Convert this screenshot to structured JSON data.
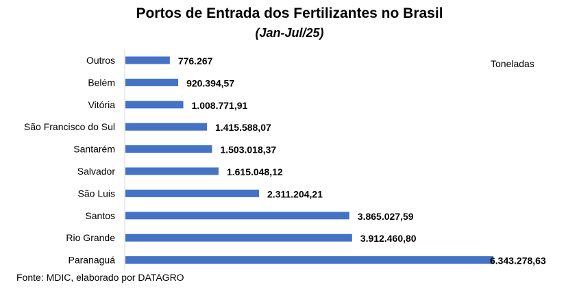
{
  "chart_data": {
    "type": "bar",
    "orientation": "horizontal",
    "title": "Portos de Entrada dos Fertilizantes no Brasil",
    "subtitle": "(Jan-Jul/25)",
    "unit_label": "Toneladas",
    "source": "Fonte: MDIC, elaborado por DATAGRO",
    "categories": [
      "Outros",
      "Belém",
      "Vitória",
      "São Francisco do Sul",
      "Santarém",
      "Salvador",
      "São Luis",
      "Santos",
      "Rio Grande",
      "Paranaguá"
    ],
    "values": [
      776267,
      920394.57,
      1008771.91,
      1415588.07,
      1503018.37,
      1615048.12,
      2311204.21,
      3865027.59,
      3912460.8,
      6343278.63
    ],
    "value_labels": [
      "776.267",
      "920.394,57",
      "1.008.771,91",
      "1.415.588,07",
      "1.503.018,37",
      "1.615.048,12",
      "2.311.204,21",
      "3.865.027,59",
      "3.912.460,80",
      "6.343.278,63"
    ],
    "xlim": [
      0,
      6343278.63
    ],
    "grid": false,
    "legend": "none",
    "bar_color": "#4472C4",
    "axis_color": "#D9D9D9"
  }
}
